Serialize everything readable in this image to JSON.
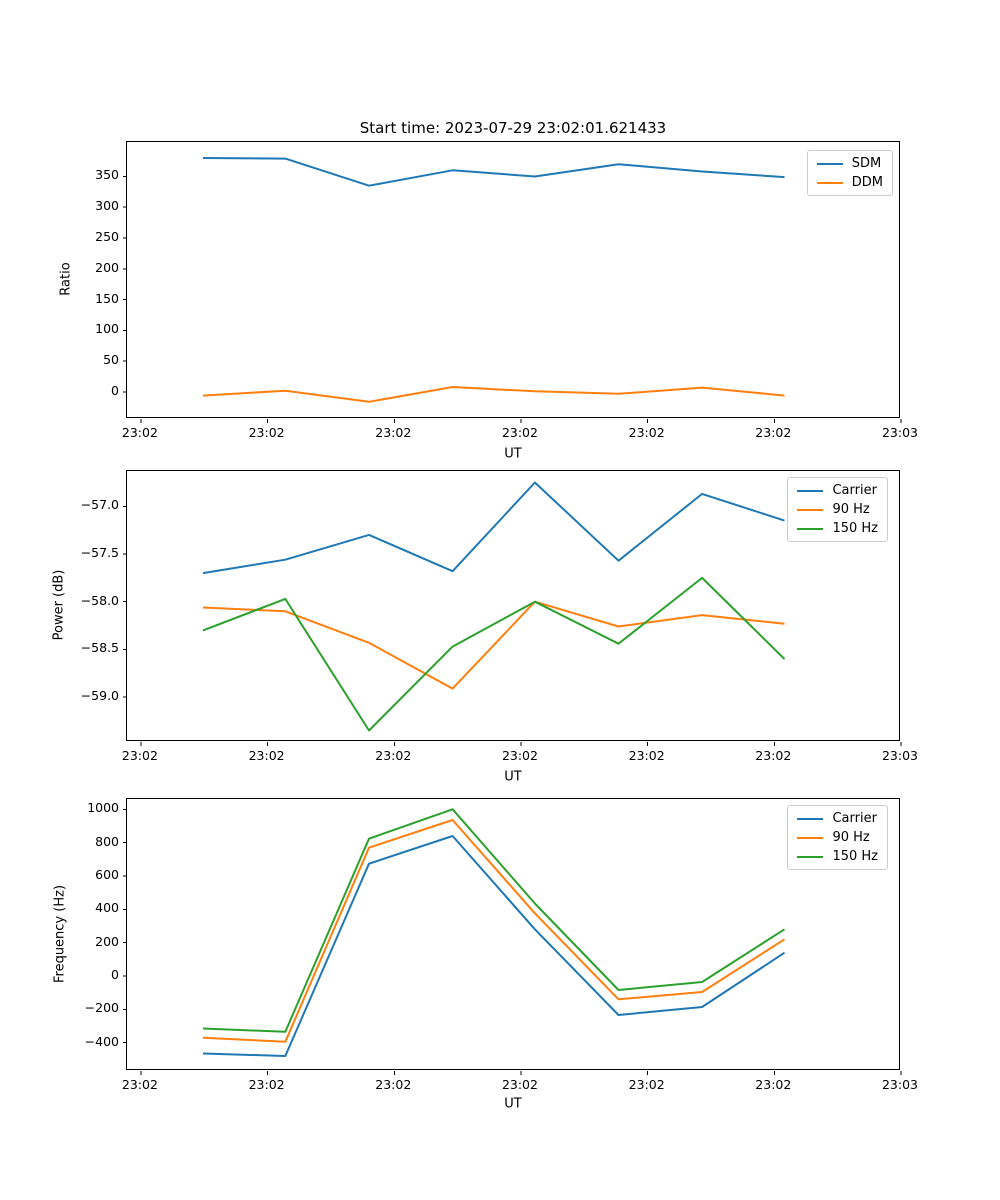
{
  "figure": {
    "title": "Start time: 2023-07-29 23:02:01.621433",
    "background": "#ffffff",
    "line_colors": {
      "blue": "#1f77b4",
      "orange": "#ff7f0e",
      "green": "#2ca02c"
    }
  },
  "chart_data": [
    {
      "type": "line",
      "title": "Start time: 2023-07-29 23:02:01.621433",
      "xlabel": "UT",
      "ylabel": "Ratio",
      "grid": false,
      "legend_position": "upper right",
      "x_seconds_after_2302": [
        4.9,
        11.4,
        18.0,
        24.6,
        31.1,
        37.7,
        44.3,
        50.8
      ],
      "xlim_seconds": [
        -1.1,
        60
      ],
      "x_ticks_seconds": [
        0,
        10,
        20,
        30,
        40,
        50,
        60
      ],
      "x_tick_labels": [
        "23:02",
        "23:02",
        "23:02",
        "23:02",
        "23:02",
        "23:02",
        "23:03"
      ],
      "ylim": [
        -44,
        406
      ],
      "y_ticks": [
        0,
        50,
        100,
        150,
        200,
        250,
        300,
        350
      ],
      "y_tick_labels": [
        "0",
        "50",
        "100",
        "150",
        "200",
        "250",
        "300",
        "350"
      ],
      "series": [
        {
          "name": "SDM",
          "color": "#1f77b4",
          "values": [
            380,
            379,
            335,
            360,
            350,
            370,
            358,
            349
          ]
        },
        {
          "name": "DDM",
          "color": "#ff7f0e",
          "values": [
            -6,
            2,
            -16,
            8,
            1,
            -3,
            7,
            -6
          ]
        }
      ]
    },
    {
      "type": "line",
      "title": "",
      "xlabel": "UT",
      "ylabel": "Power (dB)",
      "grid": false,
      "legend_position": "upper right",
      "x_seconds_after_2302": [
        4.9,
        11.4,
        18.0,
        24.6,
        31.1,
        37.7,
        44.3,
        50.8
      ],
      "xlim_seconds": [
        -1.1,
        60
      ],
      "x_ticks_seconds": [
        0,
        10,
        20,
        30,
        40,
        50,
        60
      ],
      "x_tick_labels": [
        "23:02",
        "23:02",
        "23:02",
        "23:02",
        "23:02",
        "23:02",
        "23:03"
      ],
      "ylim": [
        -59.47,
        -56.63
      ],
      "y_ticks": [
        -57.0,
        -57.5,
        -58.0,
        -58.5,
        -59.0
      ],
      "y_tick_labels": [
        "−57.0",
        "−57.5",
        "−58.0",
        "−58.5",
        "−59.0"
      ],
      "series": [
        {
          "name": "Carrier",
          "color": "#1f77b4",
          "values": [
            -57.7,
            -57.56,
            -57.3,
            -57.68,
            -56.75,
            -57.57,
            -56.87,
            -57.15
          ]
        },
        {
          "name": "90 Hz",
          "color": "#ff7f0e",
          "values": [
            -58.06,
            -58.1,
            -58.43,
            -58.91,
            -58.0,
            -58.26,
            -58.14,
            -58.23
          ]
        },
        {
          "name": "150 Hz",
          "color": "#2ca02c",
          "values": [
            -58.3,
            -57.97,
            -59.35,
            -58.47,
            -58.0,
            -58.44,
            -57.75,
            -58.6
          ]
        }
      ]
    },
    {
      "type": "line",
      "title": "",
      "xlabel": "UT",
      "ylabel": "Frequency (Hz)",
      "grid": false,
      "legend_position": "upper right",
      "x_seconds_after_2302": [
        4.9,
        11.4,
        18.0,
        24.6,
        31.1,
        37.7,
        44.3,
        50.8
      ],
      "xlim_seconds": [
        -1.1,
        60
      ],
      "x_ticks_seconds": [
        0,
        10,
        20,
        30,
        40,
        50,
        60
      ],
      "x_tick_labels": [
        "23:02",
        "23:02",
        "23:02",
        "23:02",
        "23:02",
        "23:02",
        "23:03"
      ],
      "ylim": [
        -570,
        1062
      ],
      "y_ticks": [
        1000,
        800,
        600,
        400,
        200,
        0,
        -200,
        -400
      ],
      "y_tick_labels": [
        "1000",
        "800",
        "600",
        "400",
        "200",
        "0",
        "−200",
        "−400"
      ],
      "series": [
        {
          "name": "Carrier",
          "color": "#1f77b4",
          "values": [
            -465,
            -480,
            674,
            840,
            280,
            -234,
            -186,
            140
          ]
        },
        {
          "name": "90 Hz",
          "color": "#ff7f0e",
          "values": [
            -370,
            -395,
            770,
            936,
            376,
            -140,
            -96,
            220
          ]
        },
        {
          "name": "150 Hz",
          "color": "#2ca02c",
          "values": [
            -315,
            -335,
            824,
            1000,
            435,
            -84,
            -36,
            280
          ]
        }
      ]
    }
  ]
}
